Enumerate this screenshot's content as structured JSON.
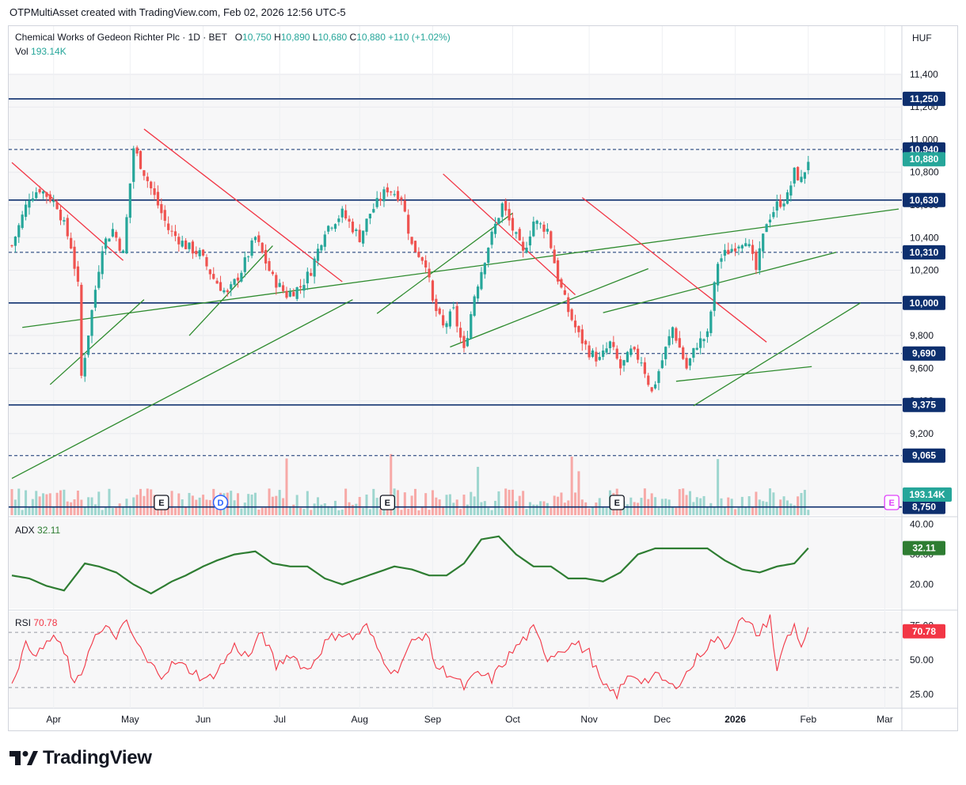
{
  "header": {
    "attribution": "OTPMultiAsset created with TradingView.com, Feb 02, 2026 12:56 UTC-5"
  },
  "legend": {
    "symbol": "Chemical Works of Gedeon Richter Plc · 1D · BET",
    "o_label": "O",
    "o_value": "10,750",
    "h_label": "H",
    "h_value": "10,890",
    "l_label": "L",
    "l_value": "10,680",
    "c_label": "C",
    "c_value": "10,880",
    "change": "+110 (+1.02%)",
    "vol_label": "Vol",
    "vol_value": "193.14K"
  },
  "currency": "HUF",
  "adx": {
    "label": "ADX",
    "value": "32.11"
  },
  "rsi": {
    "label": "RSI",
    "value": "70.78"
  },
  "footer": {
    "brand": "TradingView"
  },
  "colors": {
    "up": "#26a69a",
    "down": "#ef5350",
    "level": "#0d2f6e",
    "trend_up": "#2e8b2e",
    "trend_down": "#f23645",
    "adx": "#2e7d32",
    "rsi": "#f23645"
  },
  "chart_data": {
    "type": "candlestick",
    "title": "Chemical Works of Gedeon Richter Plc · 1D · BET",
    "currency": "HUF",
    "y_range": [
      8700,
      11550
    ],
    "y_ticks": [
      9200,
      9400,
      9600,
      9800,
      10000,
      10200,
      10400,
      10600,
      10800,
      11000,
      11200,
      11400
    ],
    "y_tick_labels": [
      "9,200",
      "9,400",
      "9,600",
      "9,800",
      "10,000",
      "10,200",
      "10,400",
      "10,600",
      "10,800",
      "11,000",
      "11,200",
      "11,400"
    ],
    "months": [
      "Apr",
      "May",
      "Jun",
      "Jul",
      "Aug",
      "Sep",
      "Oct",
      "Nov",
      "Dec",
      "2026",
      "Feb",
      "Mar"
    ],
    "month_day_index": [
      12,
      34,
      55,
      77,
      100,
      121,
      144,
      166,
      187,
      208,
      229,
      251
    ],
    "last_day_index": 229,
    "total_days": 255,
    "price_path_days": [
      0,
      5,
      8,
      13,
      17,
      19,
      20,
      23,
      26,
      29,
      32,
      35,
      37,
      41,
      45,
      50,
      54,
      58,
      62,
      66,
      70,
      75,
      79,
      83,
      86,
      90,
      95,
      100,
      103,
      108,
      112,
      115,
      119,
      121,
      124,
      127,
      130,
      133,
      137,
      141,
      144,
      147,
      150,
      154,
      157,
      160,
      163,
      166,
      169,
      172,
      175,
      178,
      181,
      184,
      187,
      190,
      194,
      197,
      200,
      203,
      205,
      208,
      211,
      214,
      217,
      220,
      223,
      225,
      227,
      229
    ],
    "price_path_values": [
      10350,
      10650,
      10700,
      10600,
      10350,
      10100,
      9550,
      9950,
      10350,
      10450,
      10300,
      10950,
      10850,
      10650,
      10450,
      10350,
      10300,
      10150,
      10050,
      10200,
      10400,
      10150,
      10050,
      10100,
      10200,
      10450,
      10550,
      10400,
      10550,
      10700,
      10650,
      10350,
      10250,
      10000,
      9850,
      9950,
      9700,
      10050,
      10350,
      10600,
      10450,
      10300,
      10500,
      10450,
      10150,
      9950,
      9800,
      9700,
      9650,
      9750,
      9600,
      9700,
      9650,
      9450,
      9650,
      9850,
      9600,
      9750,
      9800,
      10250,
      10300,
      10350,
      10400,
      10200,
      10500,
      10600,
      10650,
      10800,
      10750,
      10880
    ],
    "levels": [
      {
        "value": 11250,
        "label": "11,250",
        "style": "solid"
      },
      {
        "value": 10940,
        "label": "10,940",
        "style": "dashed"
      },
      {
        "value": 10630,
        "label": "10,630",
        "style": "solid"
      },
      {
        "value": 10310,
        "label": "10,310",
        "style": "dashed"
      },
      {
        "value": 10000,
        "label": "10,000",
        "style": "solid"
      },
      {
        "value": 9690,
        "label": "9,690",
        "style": "dashed"
      },
      {
        "value": 9375,
        "label": "9,375",
        "style": "solid"
      },
      {
        "value": 9065,
        "label": "9,065",
        "style": "dashed"
      },
      {
        "value": 8750,
        "label": "8,750",
        "style": "solid"
      }
    ],
    "last_price_label": "10,880",
    "volume_label": "193.14K",
    "trendlines_up": [
      [
        0,
        8925,
        98,
        10020
      ],
      [
        11,
        9500,
        38,
        10020
      ],
      [
        51,
        9800,
        75,
        10350
      ],
      [
        105,
        9935,
        144,
        10550
      ],
      [
        126,
        9730,
        183,
        10210
      ],
      [
        170,
        9940,
        237,
        10310
      ],
      [
        3,
        9850,
        255,
        10575
      ],
      [
        196,
        9370,
        244,
        10000
      ],
      [
        191,
        9520,
        230,
        9610
      ]
    ],
    "trendlines_down": [
      [
        0,
        10860,
        32,
        10260
      ],
      [
        38,
        11065,
        95,
        10130
      ],
      [
        124,
        10790,
        162,
        10050
      ],
      [
        164,
        10645,
        217,
        9760
      ]
    ],
    "events": [
      {
        "kind": "E",
        "day": 43
      },
      {
        "kind": "D",
        "day": 60
      },
      {
        "kind": "E",
        "day": 108
      },
      {
        "kind": "E",
        "day": 174
      },
      {
        "kind": "E",
        "day": 253
      }
    ],
    "adx": {
      "label": "ADX",
      "last": "32.11",
      "y_range": [
        12,
        42
      ],
      "ticks": [
        20,
        30,
        40
      ],
      "tick_labels": [
        "20.00",
        "30.00",
        "40.00"
      ],
      "path_days": [
        0,
        5,
        10,
        15,
        21,
        25,
        30,
        35,
        40,
        46,
        50,
        55,
        59,
        64,
        70,
        75,
        80,
        85,
        90,
        95,
        100,
        105,
        110,
        115,
        120,
        125,
        130,
        135,
        140,
        145,
        150,
        155,
        160,
        165,
        170,
        175,
        180,
        185,
        190,
        195,
        200,
        205,
        210,
        215,
        220,
        225,
        229
      ],
      "path_values": [
        23,
        22,
        19.5,
        18,
        27,
        26,
        24,
        20,
        17,
        21,
        23,
        26,
        28,
        30,
        31,
        27,
        26,
        26,
        22,
        20,
        22,
        24,
        26,
        25,
        23,
        23,
        27,
        35,
        36,
        30,
        26,
        26,
        22,
        22,
        21,
        24,
        30,
        32,
        32,
        32,
        32,
        28,
        25,
        24,
        26,
        27,
        32.1
      ]
    },
    "rsi": {
      "label": "RSI",
      "last": "70.78",
      "y_range": [
        15,
        85
      ],
      "ticks": [
        25,
        50,
        75
      ],
      "tick_labels": [
        "25.00",
        "50.00",
        "75.00"
      ],
      "overbought": 70,
      "oversold": 30,
      "path_days": [
        0,
        4,
        8,
        12,
        16,
        18,
        20,
        23,
        27,
        30,
        33,
        36,
        39,
        43,
        47,
        52,
        56,
        60,
        64,
        68,
        72,
        76,
        80,
        85,
        90,
        94,
        98,
        102,
        106,
        110,
        115,
        119,
        122,
        126,
        130,
        134,
        138,
        142,
        146,
        150,
        154,
        158,
        162,
        166,
        170,
        174,
        178,
        182,
        186,
        190,
        194,
        198,
        202,
        206,
        209,
        212,
        215,
        218,
        220,
        222,
        225,
        227,
        229
      ],
      "path_values": [
        35,
        60,
        55,
        68,
        50,
        30,
        40,
        65,
        72,
        68,
        76,
        62,
        48,
        40,
        48,
        42,
        35,
        45,
        60,
        52,
        70,
        45,
        55,
        42,
        62,
        70,
        66,
        74,
        54,
        40,
        62,
        70,
        45,
        40,
        30,
        40,
        36,
        50,
        62,
        72,
        52,
        58,
        62,
        55,
        30,
        25,
        40,
        35,
        38,
        30,
        40,
        55,
        65,
        60,
        80,
        75,
        68,
        82,
        40,
        62,
        75,
        60,
        70.8
      ]
    }
  }
}
